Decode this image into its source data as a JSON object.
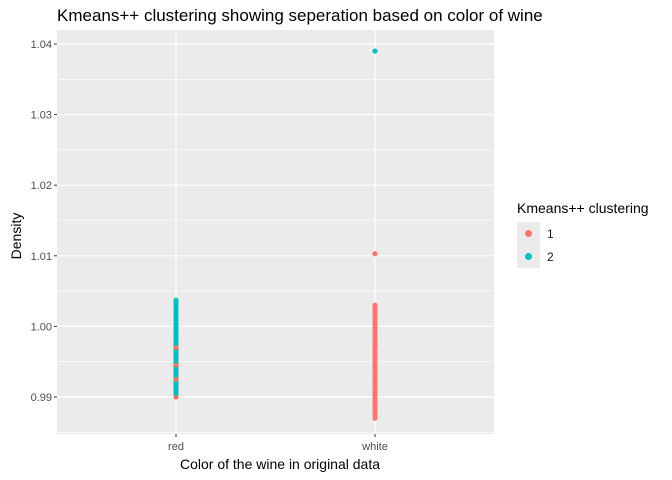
{
  "chart_data": {
    "type": "scatter",
    "title": "Kmeans++ clustering showing seperation based on color of wine",
    "xlabel": "Color of the wine in original data",
    "ylabel": "Density",
    "categories": [
      "red",
      "white"
    ],
    "ylim": [
      0.985,
      1.04
    ],
    "yticks": [
      0.99,
      1.0,
      1.01,
      1.02,
      1.03,
      1.04
    ],
    "ytick_labels": [
      "0.99",
      "1.00",
      "1.01",
      "1.02",
      "1.03",
      "1.04"
    ],
    "grid": true,
    "legend": {
      "title": "Kmeans++ clustering",
      "position": "right"
    },
    "series": [
      {
        "name": "1",
        "color": "#F8766D",
        "points": [
          {
            "x": "red",
            "y_min": 0.99,
            "y_max": 0.9975
          },
          {
            "x": "white",
            "y_min": 0.987,
            "y_max": 1.003
          },
          {
            "x": "white",
            "y": 1.0103
          }
        ]
      },
      {
        "name": "2",
        "color": "#00BFC4",
        "points": [
          {
            "x": "red",
            "y_min": 0.9905,
            "y_max": 1.0037
          },
          {
            "x": "white",
            "y": 1.039
          }
        ]
      }
    ]
  }
}
